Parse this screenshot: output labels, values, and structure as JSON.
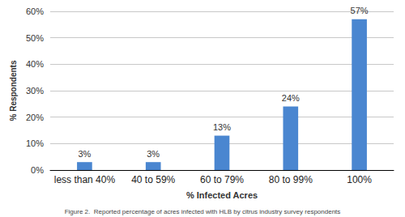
{
  "chart_data": {
    "type": "bar",
    "caption": "Figure 2.  Reported percentage of acres infected with HLB by citrus industry survey respondents",
    "xlabel": "% Infected Acres",
    "ylabel": "% Respondents",
    "categories": [
      "less than 40%",
      "40 to 59%",
      "60 to 79%",
      "80 to 99%",
      "100%"
    ],
    "values": [
      3,
      3,
      13,
      24,
      57
    ],
    "value_labels": [
      "3%",
      "3%",
      "13%",
      "24%",
      "57%"
    ],
    "color": "#4a86d0",
    "ylim": [
      0,
      60
    ],
    "yticks": [
      {
        "value": 0,
        "label": "0%"
      },
      {
        "value": 10,
        "label": "10%"
      },
      {
        "value": 20,
        "label": "20%"
      },
      {
        "value": 30,
        "label": "30%"
      },
      {
        "value": 40,
        "label": "40%"
      },
      {
        "value": 50,
        "label": "50%"
      },
      {
        "value": 60,
        "label": "60%"
      }
    ],
    "grid": true,
    "data_labels": true
  }
}
